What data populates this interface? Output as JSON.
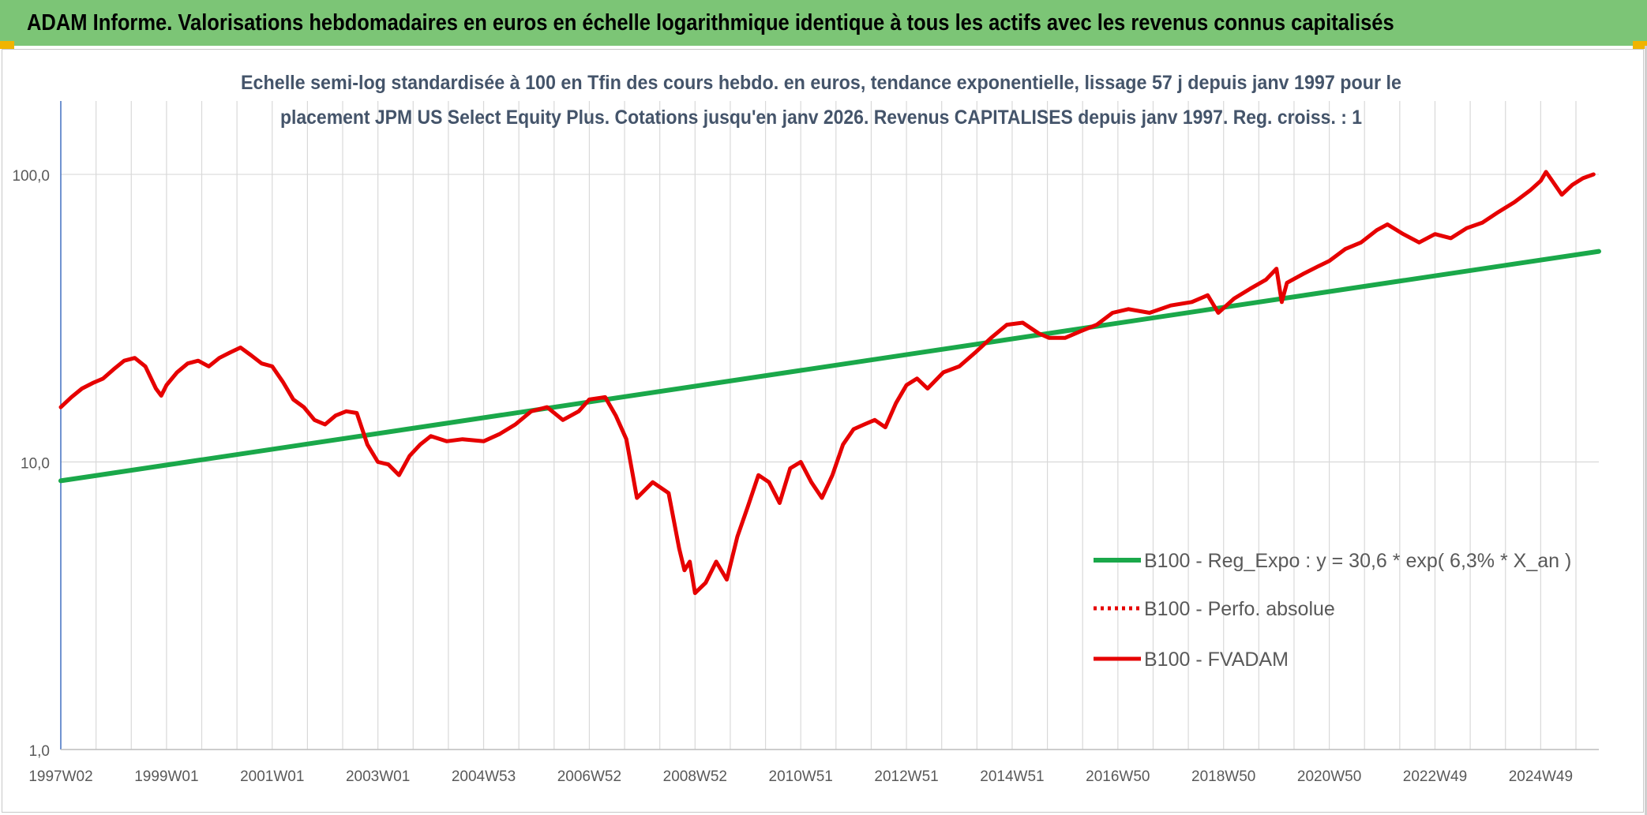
{
  "banner": {
    "title": "ADAM Informe. Valorisations hebdomadaires en euros en échelle logarithmique identique à tous les actifs avec les revenus connus capitalisés"
  },
  "colors": {
    "banner_bg": "#7cc576",
    "regression": "#1aa84a",
    "fvadam": "#e60000",
    "perfo": "#e60000",
    "grid": "#d9d9d9",
    "axis": "#4472c4",
    "corner": "#f0b400"
  },
  "chart_data": {
    "type": "line",
    "title_line1": "Echelle semi-log standardisée à 100 en Tfin des cours hebdo. en euros, tendance exponentielle, lissage 57 j depuis janv 1997 pour le",
    "title_line2": "placement JPM US Select Equity Plus. Cotations jusqu'en janv 2026. Revenus CAPITALISES depuis janv 1997. Reg. croiss. : 1",
    "y_scale": "log",
    "ylim": [
      1,
      180
    ],
    "xlim": [
      1997.0,
      2026.1
    ],
    "y_ticks": [
      {
        "value": 1,
        "label": "1,0"
      },
      {
        "value": 10,
        "label": "10,0"
      },
      {
        "value": 100,
        "label": "100,0"
      }
    ],
    "x_ticks": [
      {
        "value": 1997.0,
        "label": "1997W02"
      },
      {
        "value": 1999.0,
        "label": "1999W01"
      },
      {
        "value": 2001.0,
        "label": "2001W01"
      },
      {
        "value": 2003.0,
        "label": "2003W01"
      },
      {
        "value": 2005.0,
        "label": "2004W53"
      },
      {
        "value": 2007.0,
        "label": "2006W52"
      },
      {
        "value": 2009.0,
        "label": "2008W52"
      },
      {
        "value": 2011.0,
        "label": "2010W51"
      },
      {
        "value": 2013.0,
        "label": "2012W51"
      },
      {
        "value": 2015.0,
        "label": "2014W51"
      },
      {
        "value": 2017.0,
        "label": "2016W50"
      },
      {
        "value": 2019.0,
        "label": "2018W50"
      },
      {
        "value": 2021.0,
        "label": "2020W50"
      },
      {
        "value": 2023.0,
        "label": "2022W49"
      },
      {
        "value": 2025.0,
        "label": "2024W49"
      }
    ],
    "grid": true,
    "legend_position": "bottom-right",
    "series": [
      {
        "name": "B100 - Reg_Expo : y = 30,6 * exp( 6,3% *  X_an )",
        "color": "#1aa84a",
        "style": "solid",
        "x": [
          1997.0,
          2026.1
        ],
        "y": [
          8.6,
          54.0
        ]
      },
      {
        "name": "B100 - Perfo. absolue",
        "color": "#e60000",
        "style": "dotted",
        "x": [],
        "y": []
      },
      {
        "name": "B100 - FVADAM",
        "color": "#e60000",
        "style": "solid",
        "x": [
          1997.0,
          1997.2,
          1997.4,
          1997.6,
          1997.8,
          1998.0,
          1998.2,
          1998.4,
          1998.6,
          1998.8,
          1998.9,
          1999.0,
          1999.2,
          1999.4,
          1999.6,
          1999.8,
          2000.0,
          2000.2,
          2000.4,
          2000.6,
          2000.8,
          2001.0,
          2001.2,
          2001.4,
          2001.6,
          2001.8,
          2002.0,
          2002.2,
          2002.4,
          2002.6,
          2002.8,
          2003.0,
          2003.2,
          2003.4,
          2003.6,
          2003.8,
          2004.0,
          2004.3,
          2004.6,
          2005.0,
          2005.3,
          2005.6,
          2005.9,
          2006.2,
          2006.5,
          2006.8,
          2007.0,
          2007.3,
          2007.5,
          2007.7,
          2007.9,
          2008.2,
          2008.5,
          2008.7,
          2008.8,
          2008.9,
          2009.0,
          2009.2,
          2009.4,
          2009.6,
          2009.8,
          2010.0,
          2010.2,
          2010.4,
          2010.6,
          2010.8,
          2011.0,
          2011.2,
          2011.4,
          2011.6,
          2011.8,
          2012.0,
          2012.2,
          2012.4,
          2012.6,
          2012.8,
          2013.0,
          2013.2,
          2013.4,
          2013.7,
          2014.0,
          2014.3,
          2014.6,
          2014.9,
          2015.2,
          2015.5,
          2015.7,
          2016.0,
          2016.3,
          2016.6,
          2016.9,
          2017.2,
          2017.6,
          2018.0,
          2018.4,
          2018.7,
          2018.9,
          2019.2,
          2019.5,
          2019.8,
          2020.0,
          2020.1,
          2020.2,
          2020.5,
          2020.8,
          2021.0,
          2021.3,
          2021.6,
          2021.9,
          2022.1,
          2022.4,
          2022.7,
          2023.0,
          2023.3,
          2023.6,
          2023.9,
          2024.2,
          2024.5,
          2024.8,
          2025.0,
          2025.1,
          2025.2,
          2025.4,
          2025.6,
          2025.8,
          2026.0
        ],
        "y": [
          15.5,
          16.8,
          18.0,
          18.8,
          19.5,
          21.0,
          22.5,
          23.0,
          21.5,
          18.0,
          17.0,
          18.5,
          20.5,
          22.0,
          22.5,
          21.5,
          23.0,
          24.0,
          25.0,
          23.5,
          22.0,
          21.5,
          19.0,
          16.5,
          15.5,
          14.0,
          13.5,
          14.5,
          15.0,
          14.8,
          11.5,
          10.0,
          9.8,
          9.0,
          10.5,
          11.5,
          12.3,
          11.8,
          12.0,
          11.8,
          12.5,
          13.5,
          15.0,
          15.5,
          14.0,
          15.0,
          16.5,
          16.8,
          14.5,
          12.0,
          7.5,
          8.5,
          7.8,
          5.0,
          4.2,
          4.5,
          3.5,
          3.8,
          4.5,
          3.9,
          5.5,
          7.0,
          9.0,
          8.5,
          7.2,
          9.5,
          10.0,
          8.5,
          7.5,
          9.0,
          11.5,
          13.0,
          13.5,
          14.0,
          13.2,
          16.0,
          18.5,
          19.5,
          18.0,
          20.5,
          21.5,
          24.0,
          27.0,
          30.0,
          30.5,
          28.0,
          27.0,
          27.0,
          28.5,
          30.0,
          33.0,
          34.0,
          33.0,
          35.0,
          36.0,
          38.0,
          33.0,
          37.0,
          40.0,
          43.0,
          47.0,
          36.0,
          42.0,
          45.0,
          48.0,
          50.0,
          55.0,
          58.0,
          64.0,
          67.0,
          62.0,
          58.0,
          62.0,
          60.0,
          65.0,
          68.0,
          74.0,
          80.0,
          88.0,
          95.0,
          102.0,
          96.0,
          85.0,
          92.0,
          97.0,
          100.0
        ]
      }
    ]
  }
}
